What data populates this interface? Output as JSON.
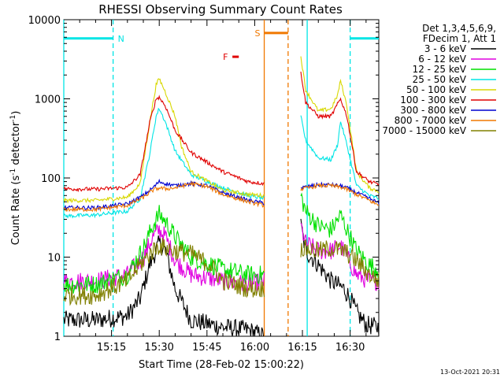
{
  "chart_data": {
    "type": "line",
    "title": "RHESSI Observing Summary Count Rates",
    "xlabel": "Start Time (28-Feb-02 15:00:22)",
    "ylabel": "Count Rate (s⁻¹ detector⁻¹)",
    "ylabel_parts": [
      "Count Rate (s",
      "-1",
      " detector",
      "-1",
      ")"
    ],
    "yscale": "log",
    "ylim": [
      1,
      10000
    ],
    "xlim_minutes": [
      0,
      99
    ],
    "xticks": [
      {
        "label": "15:15",
        "minutes": 15
      },
      {
        "label": "15:30",
        "minutes": 30
      },
      {
        "label": "15:45",
        "minutes": 45
      },
      {
        "label": "16:00",
        "minutes": 60
      },
      {
        "label": "16:15",
        "minutes": 75
      },
      {
        "label": "16:30",
        "minutes": 90
      }
    ],
    "yticks": [
      {
        "label": "1",
        "value": 1
      },
      {
        "label": "10",
        "value": 10
      },
      {
        "label": "100",
        "value": 100
      },
      {
        "label": "1000",
        "value": 1000
      },
      {
        "label": "10000",
        "value": 10000
      }
    ],
    "legend_header": [
      "Det 1,3,4,5,6,9,",
      "FDecim 1, Att 1"
    ],
    "legend_position": "right",
    "timestamp": "13-Oct-2021 20:31",
    "markers": [
      {
        "label": "N",
        "color": "#00e5e5",
        "level": 5800,
        "segments": [
          [
            0,
            15.5
          ],
          [
            90,
            99
          ]
        ]
      },
      {
        "label": "F",
        "color": "#e00000",
        "level": 3400,
        "segments": [
          [
            53,
            55
          ]
        ]
      },
      {
        "label": "S",
        "color": "#f07800",
        "level": 6800,
        "segments": [
          [
            63,
            70.5
          ]
        ]
      }
    ],
    "vertical_lines": [
      {
        "minutes": 15.5,
        "color": "#00e5e5",
        "style": "dashed"
      },
      {
        "minutes": 90,
        "color": "#00e5e5",
        "style": "dashed"
      },
      {
        "minutes": 0,
        "color": "#00e5e5",
        "style": "solid"
      },
      {
        "minutes": 76.5,
        "color": "#00e5e5",
        "style": "solid"
      },
      {
        "minutes": 63,
        "color": "#f07800",
        "style": "solid"
      },
      {
        "minutes": 70.5,
        "color": "#f07800",
        "style": "dashed"
      }
    ],
    "gap_minutes": [
      63,
      74.5
    ],
    "series": [
      {
        "name": "3 - 6 keV",
        "color": "#000000",
        "points": [
          [
            0,
            1.6
          ],
          [
            10,
            1.6
          ],
          [
            20,
            1.8
          ],
          [
            24,
            3
          ],
          [
            27,
            8
          ],
          [
            30,
            15
          ],
          [
            32,
            12
          ],
          [
            35,
            4
          ],
          [
            40,
            1.6
          ],
          [
            50,
            1.3
          ],
          [
            58,
            1.2
          ],
          [
            63,
            1
          ],
          [
            74.5,
            25
          ],
          [
            76,
            12
          ],
          [
            80,
            8
          ],
          [
            84,
            5
          ],
          [
            88,
            4
          ],
          [
            90,
            3
          ],
          [
            92,
            2
          ],
          [
            95,
            1.4
          ],
          [
            99,
            1.3
          ]
        ]
      },
      {
        "name": "6 - 12 keV",
        "color": "#e000e0",
        "points": [
          [
            0,
            5
          ],
          [
            10,
            5
          ],
          [
            20,
            6
          ],
          [
            25,
            10
          ],
          [
            28,
            18
          ],
          [
            30,
            22
          ],
          [
            32,
            18
          ],
          [
            35,
            9
          ],
          [
            40,
            6
          ],
          [
            50,
            5
          ],
          [
            58,
            4.5
          ],
          [
            63,
            5
          ],
          [
            74.5,
            25
          ],
          [
            76,
            15
          ],
          [
            80,
            12
          ],
          [
            84,
            12
          ],
          [
            87,
            14
          ],
          [
            89,
            10
          ],
          [
            92,
            6
          ],
          [
            96,
            5
          ],
          [
            99,
            5
          ]
        ]
      },
      {
        "name": "12 - 25 keV",
        "color": "#00e000",
        "points": [
          [
            0,
            4.5
          ],
          [
            10,
            4.5
          ],
          [
            20,
            6
          ],
          [
            25,
            13
          ],
          [
            28,
            25
          ],
          [
            30,
            35
          ],
          [
            32,
            28
          ],
          [
            35,
            18
          ],
          [
            40,
            10
          ],
          [
            50,
            7
          ],
          [
            58,
            6
          ],
          [
            63,
            6
          ],
          [
            74.5,
            60
          ],
          [
            76,
            38
          ],
          [
            80,
            25
          ],
          [
            84,
            22
          ],
          [
            87,
            34
          ],
          [
            89,
            22
          ],
          [
            92,
            12
          ],
          [
            96,
            8
          ],
          [
            99,
            7
          ]
        ]
      },
      {
        "name": "25 - 50 keV",
        "color": "#00e5e5",
        "points": [
          [
            0,
            33
          ],
          [
            10,
            34
          ],
          [
            20,
            38
          ],
          [
            24,
            55
          ],
          [
            27,
            200
          ],
          [
            29,
            600
          ],
          [
            30,
            760
          ],
          [
            32,
            500
          ],
          [
            35,
            220
          ],
          [
            40,
            110
          ],
          [
            50,
            75
          ],
          [
            58,
            60
          ],
          [
            63,
            55
          ],
          [
            74.5,
            600
          ],
          [
            76,
            300
          ],
          [
            80,
            180
          ],
          [
            84,
            170
          ],
          [
            86,
            260
          ],
          [
            87,
            520
          ],
          [
            89,
            260
          ],
          [
            92,
            80
          ],
          [
            96,
            60
          ],
          [
            99,
            55
          ]
        ]
      },
      {
        "name": "50 - 100 keV",
        "color": "#d8d800",
        "points": [
          [
            0,
            52
          ],
          [
            10,
            52
          ],
          [
            20,
            57
          ],
          [
            24,
            85
          ],
          [
            27,
            500
          ],
          [
            29,
            1500
          ],
          [
            30,
            1800
          ],
          [
            32,
            1200
          ],
          [
            35,
            600
          ],
          [
            37,
            250
          ],
          [
            40,
            120
          ],
          [
            50,
            70
          ],
          [
            58,
            62
          ],
          [
            63,
            60
          ],
          [
            74.5,
            3500
          ],
          [
            76,
            1300
          ],
          [
            80,
            700
          ],
          [
            84,
            750
          ],
          [
            86,
            1100
          ],
          [
            87,
            1700
          ],
          [
            89,
            800
          ],
          [
            92,
            120
          ],
          [
            96,
            75
          ],
          [
            99,
            68
          ]
        ]
      },
      {
        "name": "100 - 300 keV",
        "color": "#e00000",
        "points": [
          [
            0,
            73
          ],
          [
            10,
            72
          ],
          [
            20,
            76
          ],
          [
            24,
            110
          ],
          [
            27,
            500
          ],
          [
            29,
            1000
          ],
          [
            30,
            1050
          ],
          [
            32,
            800
          ],
          [
            35,
            400
          ],
          [
            40,
            210
          ],
          [
            50,
            120
          ],
          [
            58,
            90
          ],
          [
            63,
            85
          ],
          [
            74.5,
            2200
          ],
          [
            76,
            900
          ],
          [
            80,
            600
          ],
          [
            84,
            600
          ],
          [
            86,
            850
          ],
          [
            87,
            1000
          ],
          [
            89,
            600
          ],
          [
            92,
            120
          ],
          [
            96,
            90
          ],
          [
            99,
            82
          ]
        ]
      },
      {
        "name": "300 - 800 keV",
        "color": "#0000d0",
        "points": [
          [
            0,
            42
          ],
          [
            10,
            42
          ],
          [
            20,
            47
          ],
          [
            25,
            60
          ],
          [
            28,
            75
          ],
          [
            30,
            90
          ],
          [
            32,
            85
          ],
          [
            35,
            80
          ],
          [
            40,
            85
          ],
          [
            45,
            80
          ],
          [
            50,
            65
          ],
          [
            58,
            52
          ],
          [
            63,
            48
          ],
          [
            74.5,
            75
          ],
          [
            80,
            82
          ],
          [
            84,
            82
          ],
          [
            88,
            78
          ],
          [
            92,
            65
          ],
          [
            96,
            55
          ],
          [
            99,
            48
          ]
        ]
      },
      {
        "name": "800 - 7000 keV",
        "color": "#f07800",
        "points": [
          [
            0,
            40
          ],
          [
            10,
            40
          ],
          [
            20,
            45
          ],
          [
            25,
            57
          ],
          [
            28,
            70
          ],
          [
            30,
            75
          ],
          [
            32,
            73
          ],
          [
            35,
            75
          ],
          [
            40,
            85
          ],
          [
            45,
            78
          ],
          [
            50,
            62
          ],
          [
            58,
            50
          ],
          [
            63,
            45
          ],
          [
            74.5,
            72
          ],
          [
            80,
            80
          ],
          [
            84,
            80
          ],
          [
            88,
            75
          ],
          [
            92,
            62
          ],
          [
            96,
            52
          ],
          [
            99,
            45
          ]
        ]
      },
      {
        "name": "7000 - 15000 keV",
        "color": "#808000",
        "points": [
          [
            0,
            3.3
          ],
          [
            10,
            3.3
          ],
          [
            20,
            5
          ],
          [
            24,
            8
          ],
          [
            28,
            12
          ],
          [
            30,
            14
          ],
          [
            32,
            13
          ],
          [
            35,
            12
          ],
          [
            40,
            11
          ],
          [
            46,
            8
          ],
          [
            50,
            5
          ],
          [
            58,
            4
          ],
          [
            63,
            4
          ],
          [
            74.5,
            13
          ],
          [
            80,
            12
          ],
          [
            84,
            13
          ],
          [
            88,
            12
          ],
          [
            92,
            9
          ],
          [
            96,
            6
          ],
          [
            99,
            5
          ]
        ]
      }
    ]
  }
}
